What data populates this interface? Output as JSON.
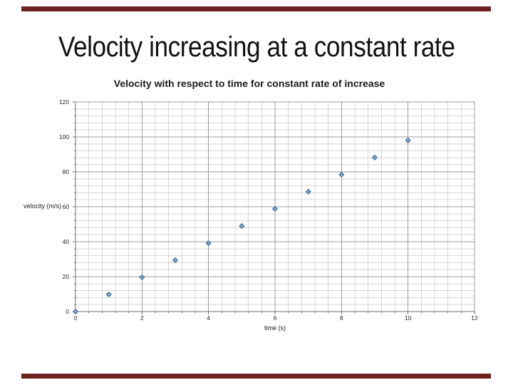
{
  "slide": {
    "title": "Velocity increasing at a constant rate",
    "accent_color": "#6d2121"
  },
  "chart_data": {
    "type": "scatter",
    "title": "Velocity with respect to time for constant rate of increase",
    "xlabel": "time (s)",
    "ylabel": "velocity (m/s)",
    "xlim": [
      0,
      12
    ],
    "ylim": [
      0,
      120
    ],
    "x_ticks": [
      0,
      2,
      4,
      6,
      8,
      10,
      12
    ],
    "y_ticks": [
      0,
      20,
      40,
      60,
      80,
      100,
      120
    ],
    "x_minor_unit": 0.4,
    "x_major_unit": 2,
    "y_minor_unit": 4,
    "y_major_unit": 20,
    "grid": "on",
    "legend": "none",
    "series": [
      {
        "name": "velocity",
        "marker": "diamond",
        "marker_color": "#6a8fb5",
        "marker_edge_color": "#46719e",
        "points": [
          [
            0,
            0
          ],
          [
            1,
            9.8
          ],
          [
            2,
            19.6
          ],
          [
            3,
            29.4
          ],
          [
            4,
            39.2
          ],
          [
            5,
            49
          ],
          [
            6,
            58.8
          ],
          [
            7,
            68.6
          ],
          [
            8,
            78.4
          ],
          [
            9,
            88.2
          ],
          [
            10,
            98
          ]
        ]
      }
    ],
    "colors": {
      "minor_grid": "#d6d6d6",
      "major_grid": "#9c9c9c",
      "axis": "#6f6f6f",
      "tick_text": "#262626"
    }
  }
}
